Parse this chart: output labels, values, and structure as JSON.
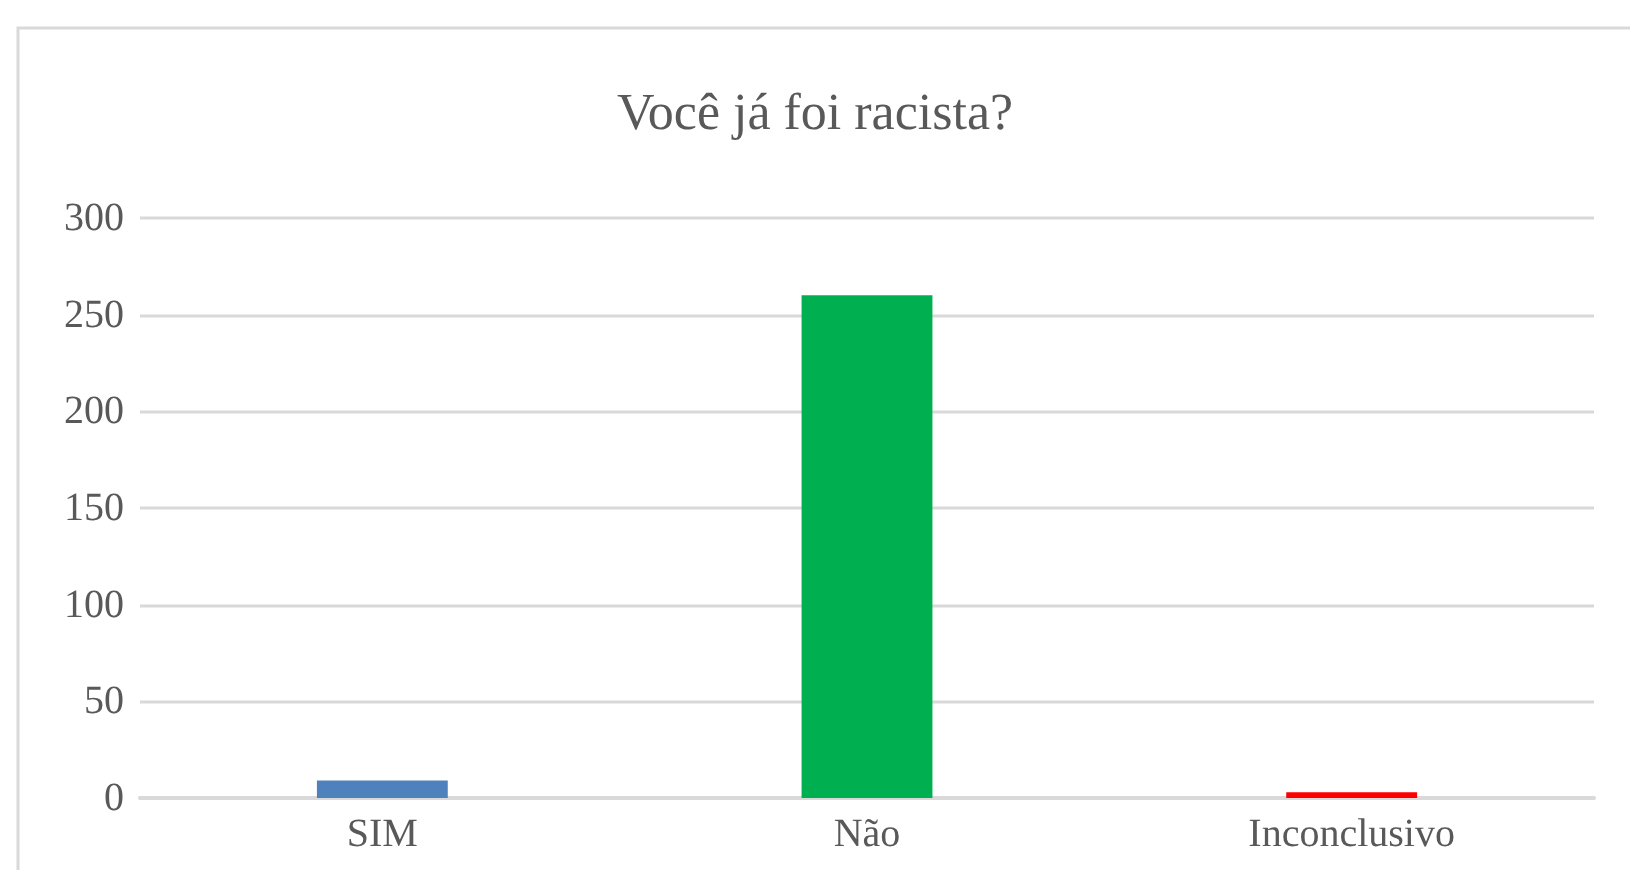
{
  "chart_data": {
    "type": "bar",
    "title": "Você já foi racista?",
    "categories": [
      "SIM",
      "Não",
      "Inconclusivo"
    ],
    "values": [
      9,
      260,
      3
    ],
    "colors": [
      "#4f81bd",
      "#00b050",
      "#ff0000"
    ],
    "ylim": [
      0,
      300
    ],
    "yticks": [
      0,
      50,
      100,
      150,
      200,
      250,
      300
    ],
    "grid": "y"
  }
}
